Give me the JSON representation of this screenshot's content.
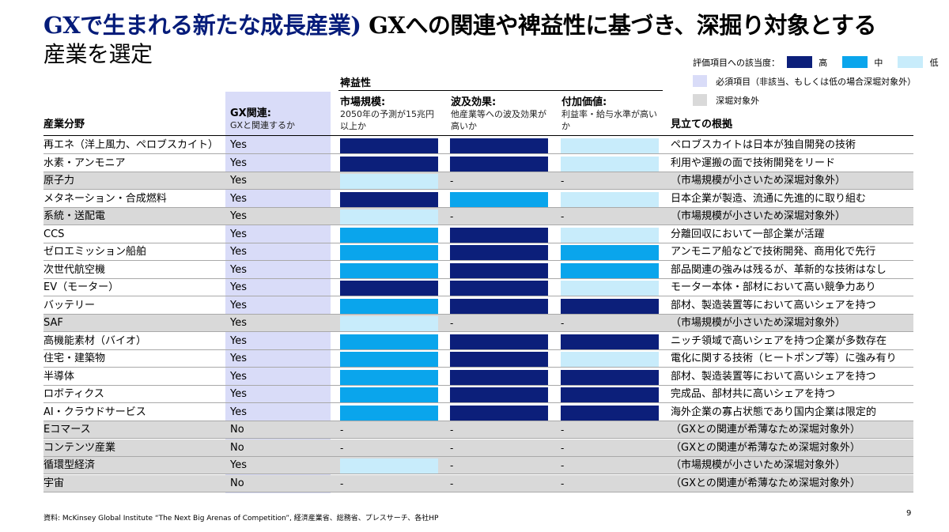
{
  "title": {
    "part1": "GXで生まれる新たな成長産業)",
    "part2": "GXへの関連や裨益性に基づき、深掘り対象とする",
    "part3": "産業を選定"
  },
  "legend": {
    "eval_label": "評価項目への該当度：",
    "levels": [
      {
        "label": "高",
        "color": "#0c1f7a"
      },
      {
        "label": "中",
        "color": "#0aa5ec"
      },
      {
        "label": "低",
        "color": "#c8ecfb"
      }
    ],
    "required_label": "必須項目（非該当、もしくは低の場合深堀対象外）",
    "required_color": "#d9dcf8",
    "excluded_label": "深堀対象外",
    "excluded_color": "#d9d9d9"
  },
  "headers": {
    "industry": "産業分野",
    "gx_title": "GX関連:",
    "gx_sub": "GXと関連するか",
    "benefit_group": "裨益性",
    "market_title": "市場規模:",
    "market_sub": "2050年の予測が15兆円以上か",
    "ripple_title": "波及効果:",
    "ripple_sub": "他産業等への波及効果が高いか",
    "value_title": "付加価値:",
    "value_sub": "利益率・給与水準が高いか",
    "rationale": "見立ての根拠"
  },
  "rows": [
    {
      "industry": "再エネ（洋上風力、ペロブスカイト）",
      "gx": "Yes",
      "market": "high",
      "ripple": "high",
      "value": "low",
      "note": "ペロブスカイトは日本が独自開発の技術",
      "excluded": false
    },
    {
      "industry": "水素・アンモニア",
      "gx": "Yes",
      "market": "high",
      "ripple": "high",
      "value": "low",
      "note": "利用や運搬の面で技術開発をリード",
      "excluded": false
    },
    {
      "industry": "原子力",
      "gx": "Yes",
      "market": "low",
      "ripple": "-",
      "value": "-",
      "note": "（市場規模が小さいため深堀対象外）",
      "excluded": true
    },
    {
      "industry": "メタネーション・合成燃料",
      "gx": "Yes",
      "market": "high",
      "ripple": "mid",
      "value": "low",
      "note": "日本企業が製造、流通に先進的に取り組む",
      "excluded": false
    },
    {
      "industry": "系統・送配電",
      "gx": "Yes",
      "market": "low",
      "ripple": "-",
      "value": "-",
      "note": "（市場規模が小さいため深堀対象外）",
      "excluded": true
    },
    {
      "industry": "CCS",
      "gx": "Yes",
      "market": "mid",
      "ripple": "high",
      "value": "low",
      "note": "分離回収において一部企業が活躍",
      "excluded": false
    },
    {
      "industry": "ゼロエミッション船舶",
      "gx": "Yes",
      "market": "mid",
      "ripple": "high",
      "value": "mid",
      "note": "アンモニア船などで技術開発、商用化で先行",
      "excluded": false
    },
    {
      "industry": "次世代航空機",
      "gx": "Yes",
      "market": "mid",
      "ripple": "high",
      "value": "mid",
      "note": "部品関連の強みは残るが、革新的な技術はなし",
      "excluded": false
    },
    {
      "industry": "EV（モーター）",
      "gx": "Yes",
      "market": "high",
      "ripple": "high",
      "value": "low",
      "note": "モーター本体・部材において高い競争力あり",
      "excluded": false
    },
    {
      "industry": "バッテリー",
      "gx": "Yes",
      "market": "mid",
      "ripple": "high",
      "value": "high",
      "note": "部材、製造装置等において高いシェアを持つ",
      "excluded": false
    },
    {
      "industry": "SAF",
      "gx": "Yes",
      "market": "low",
      "ripple": "-",
      "value": "-",
      "note": "（市場規模が小さいため深堀対象外）",
      "excluded": true
    },
    {
      "industry": "高機能素材（バイオ）",
      "gx": "Yes",
      "market": "mid",
      "ripple": "high",
      "value": "high",
      "note": "ニッチ領域で高いシェアを持つ企業が多数存在",
      "excluded": false
    },
    {
      "industry": "住宅・建築物",
      "gx": "Yes",
      "market": "mid",
      "ripple": "high",
      "value": "low",
      "note": "電化に関する技術（ヒートポンプ等）に強み有り",
      "excluded": false
    },
    {
      "industry": "半導体",
      "gx": "Yes",
      "market": "mid",
      "ripple": "high",
      "value": "high",
      "note": "部材、製造装置等において高いシェアを持つ",
      "excluded": false
    },
    {
      "industry": "ロボティクス",
      "gx": "Yes",
      "market": "mid",
      "ripple": "high",
      "value": "high",
      "note": "完成品、部材共に高いシェアを持つ",
      "excluded": false
    },
    {
      "industry": "AI・クラウドサービス",
      "gx": "Yes",
      "market": "mid",
      "ripple": "high",
      "value": "high",
      "note": "海外企業の寡占状態であり国内企業は限定的",
      "excluded": false
    },
    {
      "industry": "Eコマース",
      "gx": "No",
      "market": "-",
      "ripple": "-",
      "value": "-",
      "note": "（GXとの関連が希薄なため深堀対象外）",
      "excluded": true
    },
    {
      "industry": "コンテンツ産業",
      "gx": "No",
      "market": "-",
      "ripple": "-",
      "value": "-",
      "note": "（GXとの関連が希薄なため深堀対象外）",
      "excluded": true
    },
    {
      "industry": "循環型経済",
      "gx": "Yes",
      "market": "low",
      "ripple": "-",
      "value": "-",
      "note": "（市場規模が小さいため深堀対象外）",
      "excluded": true
    },
    {
      "industry": "宇宙",
      "gx": "No",
      "market": "-",
      "ripple": "-",
      "value": "-",
      "note": "（GXとの関連が希薄なため深堀対象外）",
      "excluded": true
    }
  ],
  "footer": "資料: McKinsey Global Institute “The Next Big Arenas of Competition”, 経済産業省、総務省、プレスサーチ、各社HP",
  "page_number": "9"
}
